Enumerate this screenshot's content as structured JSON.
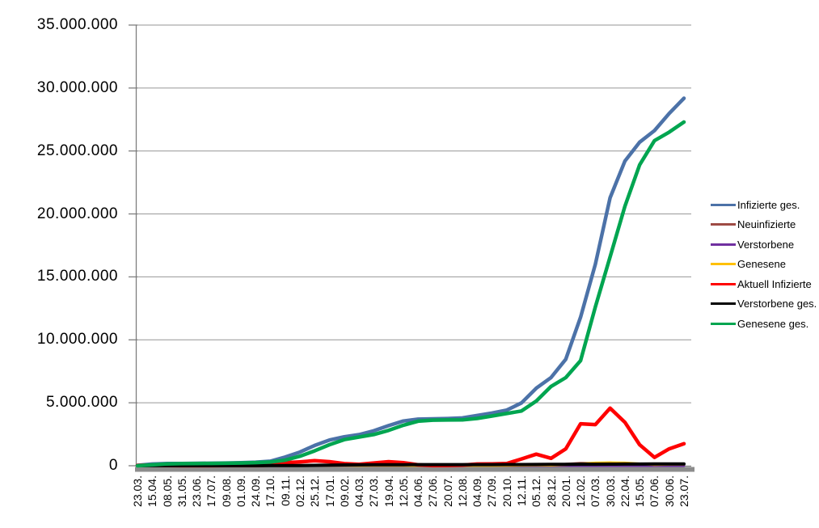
{
  "chart_data": {
    "type": "line",
    "title": "",
    "xlabel": "",
    "ylabel": "",
    "grid": true,
    "legend_position": "right",
    "background_color": "#FFFFFF",
    "gridline_color": "#969696",
    "axis_color": "#7F7F7F",
    "axis_shadow_color": "#8C8C8C",
    "y_axis": {
      "min": 0,
      "max": 35000000,
      "tick_interval": 5000000,
      "tick_labels_top_to_bottom": [
        "35.000.000",
        "30.000.000",
        "25.000.000",
        "20.000.000",
        "15.000.000",
        "10.000.000",
        "5.000.000",
        "0"
      ]
    },
    "categories": [
      "23.03.",
      "15.04.",
      "08.05.",
      "31.05.",
      "23.06.",
      "17.07.",
      "09.08.",
      "01.09.",
      "24.09.",
      "17.10.",
      "09.11.",
      "02.12.",
      "25.12.",
      "17.01.",
      "09.02.",
      "04.03.",
      "27.03.",
      "19.04.",
      "12.05.",
      "04.06.",
      "27.06.",
      "20.07.",
      "12.08.",
      "04.09.",
      "27.09.",
      "20.10.",
      "12.11.",
      "05.12.",
      "28.12.",
      "20.01.",
      "12.02.",
      "07.03.",
      "30.03.",
      "22.04.",
      "15.05.",
      "07.06.",
      "30.06.",
      "23.07."
    ],
    "series": [
      {
        "name": "Infizierte ges.",
        "color": "#4C72A8",
        "line_width": 4.5,
        "values": [
          29000,
          134000,
          171000,
          183000,
          192000,
          202000,
          217000,
          245000,
          280000,
          361000,
          687000,
          1084000,
          1612000,
          2040000,
          2301000,
          2471000,
          2772000,
          3188000,
          3549000,
          3699000,
          3727000,
          3748000,
          3796000,
          3989000,
          4190000,
          4417000,
          4989000,
          6160000,
          7005000,
          8460000,
          11800000,
          16010000,
          21280000,
          24190000,
          25700000,
          26620000,
          27980000,
          29190000
        ]
      },
      {
        "name": "Neuinfizierte",
        "color": "#9E4B44",
        "line_width": 3,
        "values": [
          4000,
          2500,
          1000,
          500,
          400,
          400,
          1000,
          1400,
          2000,
          7000,
          23000,
          17000,
          25000,
          14000,
          8000,
          9000,
          20000,
          24000,
          12000,
          4000,
          600,
          1500,
          5000,
          10000,
          8000,
          12000,
          48000,
          64000,
          21000,
          134000,
          210000,
          200000,
          237000,
          136000,
          50000,
          84000,
          119000,
          89000
        ]
      },
      {
        "name": "Verstorbene",
        "color": "#7030A0",
        "line_width": 3,
        "values": [
          30,
          200,
          150,
          50,
          20,
          10,
          10,
          10,
          10,
          30,
          150,
          400,
          700,
          900,
          600,
          400,
          250,
          250,
          250,
          100,
          50,
          30,
          20,
          60,
          70,
          80,
          200,
          400,
          350,
          180,
          230,
          250,
          300,
          300,
          150,
          100,
          100,
          120
        ]
      },
      {
        "name": "Genesene",
        "color": "#FFC000",
        "line_width": 3,
        "values": [
          2000,
          4000,
          3000,
          1000,
          400,
          400,
          800,
          1200,
          1800,
          4000,
          12000,
          19000,
          21000,
          18000,
          10000,
          8000,
          15000,
          19000,
          16000,
          7000,
          2000,
          1000,
          4000,
          8000,
          8000,
          10000,
          30000,
          45000,
          30000,
          80000,
          150000,
          230000,
          250000,
          230000,
          160000,
          80000,
          100000,
          110000
        ]
      },
      {
        "name": "Aktuell Infizierte",
        "color": "#FF0000",
        "line_width": 4.5,
        "values": [
          26000,
          59000,
          20000,
          9000,
          7000,
          6000,
          10000,
          18000,
          21000,
          56000,
          235000,
          306000,
          399000,
          321000,
          166000,
          117000,
          219000,
          320000,
          246000,
          72000,
          18000,
          24000,
          54000,
          137000,
          147000,
          172000,
          542000,
          917000,
          594000,
          1344000,
          3330000,
          3266000,
          4571000,
          3457000,
          1663000,
          661000,
          1339000,
          1747000
        ]
      },
      {
        "name": "Verstorbene ges.",
        "color": "#000000",
        "line_width": 4,
        "values": [
          200,
          4000,
          7000,
          8500,
          9000,
          9100,
          9200,
          9300,
          9400,
          9800,
          11000,
          17000,
          29000,
          47000,
          62000,
          71000,
          76000,
          80000,
          85000,
          89000,
          90000,
          91000,
          92000,
          92300,
          93000,
          95000,
          97000,
          103000,
          111000,
          116000,
          120000,
          124000,
          129000,
          133000,
          137000,
          139000,
          141000,
          143000
        ]
      },
      {
        "name": "Genesene ges.",
        "color": "#00A550",
        "line_width": 4.5,
        "values": [
          3000,
          72000,
          144000,
          166000,
          176000,
          187000,
          198000,
          218000,
          250000,
          295000,
          441000,
          761000,
          1184000,
          1672000,
          2073000,
          2283000,
          2477000,
          2807000,
          3218000,
          3538000,
          3619000,
          3633000,
          3650000,
          3760000,
          3950000,
          4150000,
          4350000,
          5140000,
          6300000,
          7000000,
          8350000,
          12620000,
          16580000,
          20600000,
          23900000,
          25820000,
          26500000,
          27300000
        ]
      }
    ]
  }
}
